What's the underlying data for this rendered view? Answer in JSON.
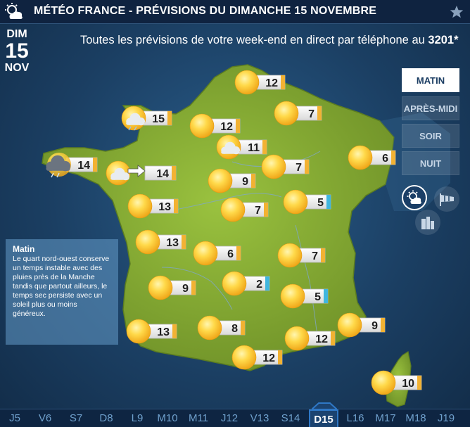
{
  "header": {
    "title": "MÉTÉO FRANCE - PRÉVISIONS DU DIMANCHE 15 NOVEMBRE",
    "logo_icon": "sun-cloud-icon",
    "favorite_icon": "star-icon"
  },
  "date": {
    "dow": "DIM",
    "day": "15",
    "month": "NOV"
  },
  "promo": {
    "text": "Toutes les prévisions de votre week-end en direct par téléphone au ",
    "number": "3201*"
  },
  "periods": [
    {
      "label": "MATIN",
      "active": true
    },
    {
      "label": "APRÈS-MIDI",
      "active": false
    },
    {
      "label": "SOIR",
      "active": false
    },
    {
      "label": "NUIT",
      "active": false
    }
  ],
  "view_buttons": [
    {
      "icon": "weather-icon",
      "active": true
    },
    {
      "icon": "windsock-icon",
      "active": false
    },
    {
      "icon": "city-icon",
      "active": false
    }
  ],
  "info": {
    "title": "Matin",
    "text": "Le quart nord-ouest conserve un temps instable avec des pluies près de la Manche tandis que partout ailleurs, le temps sec persiste avec un soleil plus ou moins généreux."
  },
  "forecasts": [
    {
      "id": "lille",
      "temp": "12",
      "weather": "sun",
      "tempColor": "warm"
    },
    {
      "id": "cherbourg",
      "temp": "15",
      "weather": "sun-cloud-rain",
      "tempColor": "warm"
    },
    {
      "id": "rouen",
      "temp": "12",
      "weather": "sun",
      "tempColor": "warm"
    },
    {
      "id": "reims",
      "temp": "7",
      "weather": "sun",
      "tempColor": "warm"
    },
    {
      "id": "paris",
      "temp": "11",
      "weather": "sun-cloud",
      "tempColor": "warm"
    },
    {
      "id": "brest",
      "temp": "14",
      "weather": "rain",
      "tempColor": "warm"
    },
    {
      "id": "rennes",
      "temp": "14",
      "weather": "sun-cloud",
      "tempColor": "warm",
      "wind": true
    },
    {
      "id": "troyes",
      "temp": "7",
      "weather": "sun",
      "tempColor": "warm"
    },
    {
      "id": "strasbourg",
      "temp": "6",
      "weather": "sun",
      "tempColor": "warm"
    },
    {
      "id": "orleans",
      "temp": "9",
      "weather": "sun",
      "tempColor": "warm"
    },
    {
      "id": "nantes",
      "temp": "13",
      "weather": "sun",
      "tempColor": "warm"
    },
    {
      "id": "bourges",
      "temp": "7",
      "weather": "sun",
      "tempColor": "warm"
    },
    {
      "id": "dijon",
      "temp": "5",
      "weather": "sun",
      "tempColor": "cold"
    },
    {
      "id": "larochelle",
      "temp": "13",
      "weather": "sun",
      "tempColor": "warm"
    },
    {
      "id": "limoges",
      "temp": "6",
      "weather": "sun",
      "tempColor": "warm"
    },
    {
      "id": "lyon",
      "temp": "7",
      "weather": "sun",
      "tempColor": "warm"
    },
    {
      "id": "bordeaux",
      "temp": "9",
      "weather": "sun",
      "tempColor": "warm"
    },
    {
      "id": "clermont",
      "temp": "2",
      "weather": "sun",
      "tempColor": "cold"
    },
    {
      "id": "grenoble",
      "temp": "5",
      "weather": "sun",
      "tempColor": "cold"
    },
    {
      "id": "biarritz",
      "temp": "13",
      "weather": "sun",
      "tempColor": "warm"
    },
    {
      "id": "toulouse",
      "temp": "8",
      "weather": "sun",
      "tempColor": "warm"
    },
    {
      "id": "nice",
      "temp": "9",
      "weather": "sun",
      "tempColor": "warm"
    },
    {
      "id": "marseille",
      "temp": "12",
      "weather": "sun",
      "tempColor": "warm"
    },
    {
      "id": "perpignan",
      "temp": "12",
      "weather": "sun",
      "tempColor": "warm"
    },
    {
      "id": "ajaccio",
      "temp": "10",
      "weather": "sun",
      "tempColor": "warm"
    }
  ],
  "timeline": [
    {
      "label": "J5"
    },
    {
      "label": "V6"
    },
    {
      "label": "S7"
    },
    {
      "label": "D8"
    },
    {
      "label": "L9"
    },
    {
      "label": "M10"
    },
    {
      "label": "M11"
    },
    {
      "label": "J12"
    },
    {
      "label": "V13"
    },
    {
      "label": "S14"
    },
    {
      "label": "D15",
      "active": true
    },
    {
      "label": "L16"
    },
    {
      "label": "M17"
    },
    {
      "label": "M18"
    },
    {
      "label": "J19"
    }
  ],
  "colors": {
    "land": "#8fb43a",
    "land_dark": "#6f9128",
    "sea": "#1f4a75",
    "tag_warm": "#f2b233",
    "tag_cold": "#40b6de",
    "active_accent": "#2f78c6"
  }
}
